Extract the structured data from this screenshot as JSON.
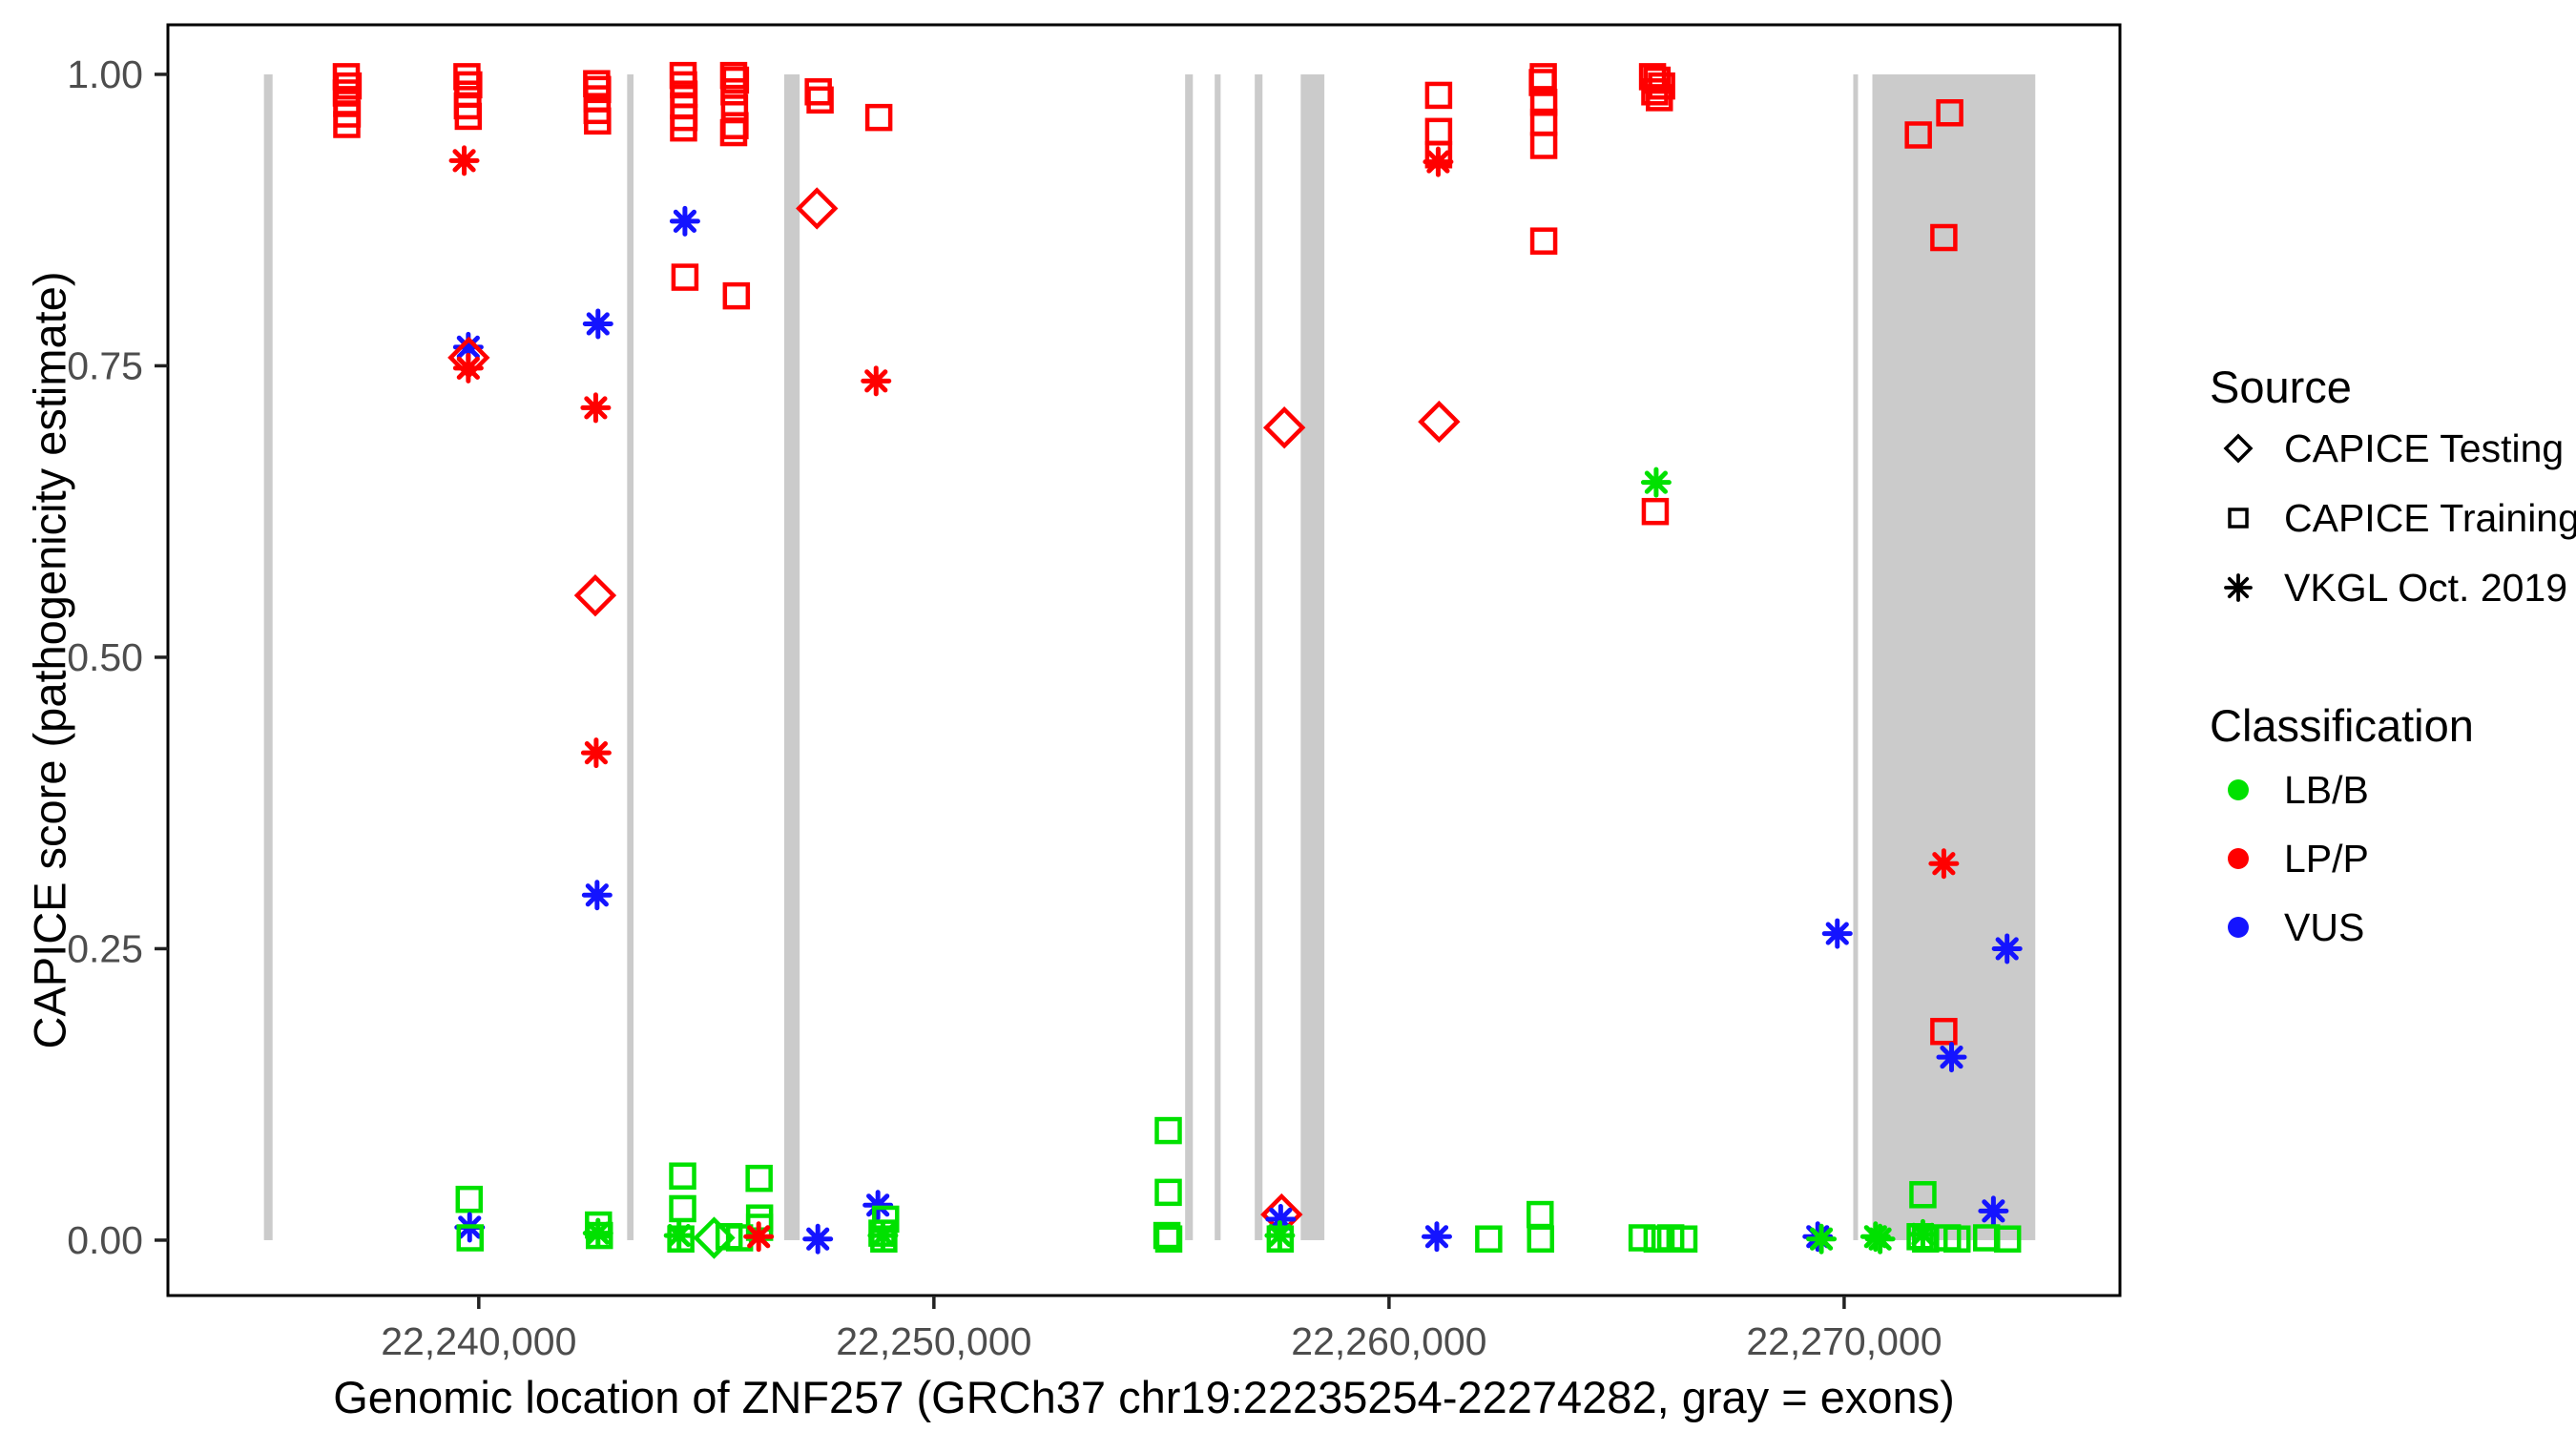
{
  "axes": {
    "x_title": "Genomic location of ZNF257 (GRCh37 chr19:22235254-22274282, gray = exons)",
    "y_title": "CAPICE score (pathogenicity estimate)"
  },
  "legend": {
    "source_title": "Source",
    "source_items": [
      {
        "label": "CAPICE Testing",
        "shape": "diamond"
      },
      {
        "label": "CAPICE Training",
        "shape": "square"
      },
      {
        "label": "VKGL Oct. 2019",
        "shape": "asterisk"
      }
    ],
    "classification_title": "Classification",
    "classification_items": [
      {
        "label": "LB/B",
        "colorKey": "LBB"
      },
      {
        "label": "LP/P",
        "colorKey": "LPP"
      },
      {
        "label": "VUS",
        "colorKey": "VUS"
      }
    ]
  },
  "chart_data": {
    "type": "scatter",
    "title": "",
    "xlabel": "Genomic location of ZNF257 (GRCh37 chr19:22235254-22274282, gray = exons)",
    "ylabel": "CAPICE score (pathogenicity estimate)",
    "x_range": [
      22233170,
      22276060
    ],
    "y_range": [
      -0.0475,
      1.0425
    ],
    "x_ticks": [
      {
        "value": 22240000,
        "label": "22,240,000"
      },
      {
        "value": 22250000,
        "label": "22,250,000"
      },
      {
        "value": 22260000,
        "label": "22,260,000"
      },
      {
        "value": 22270000,
        "label": "22,270,000"
      }
    ],
    "y_ticks": [
      {
        "value": 0.0,
        "label": "0.00"
      },
      {
        "value": 0.25,
        "label": "0.25"
      },
      {
        "value": 0.5,
        "label": "0.50"
      },
      {
        "value": 0.75,
        "label": "0.75"
      },
      {
        "value": 1.0,
        "label": "1.00"
      }
    ],
    "colors": {
      "LBB": "#00E100",
      "LPP": "#FF0000",
      "VUS": "#1414FF",
      "exon": "#CBCBCB",
      "tick_text": "#4D4D4D",
      "panel_border": "#000000"
    },
    "shape_meaning": {
      "diamond": "CAPICE Testing",
      "square": "CAPICE Training",
      "asterisk": "VKGL Oct. 2019"
    },
    "class_meaning": {
      "LBB": "LB/B",
      "LPP": "LP/P",
      "VUS": "VUS"
    },
    "exons_gray_regions": [
      [
        22235280,
        22235470
      ],
      [
        22243260,
        22243400
      ],
      [
        22246710,
        22247050
      ],
      [
        22255520,
        22255690
      ],
      [
        22256170,
        22256300
      ],
      [
        22257050,
        22257220
      ],
      [
        22258060,
        22258580
      ],
      [
        22270200,
        22270300
      ],
      [
        22270620,
        22274200
      ]
    ],
    "point_format": [
      "genomic_position",
      "capice_score",
      "shape",
      "classification"
    ],
    "points": [
      [
        22237090,
        0.998,
        "square",
        "LPP"
      ],
      [
        22237130,
        0.99,
        "square",
        "LPP"
      ],
      [
        22237090,
        0.984,
        "square",
        "LPP"
      ],
      [
        22237100,
        0.975,
        "square",
        "LPP"
      ],
      [
        22237110,
        0.966,
        "square",
        "LPP"
      ],
      [
        22237100,
        0.957,
        "square",
        "LPP"
      ],
      [
        22239740,
        0.998,
        "square",
        "LPP"
      ],
      [
        22239780,
        0.991,
        "square",
        "LPP"
      ],
      [
        22239760,
        0.983,
        "square",
        "LPP"
      ],
      [
        22239750,
        0.973,
        "square",
        "LPP"
      ],
      [
        22239770,
        0.964,
        "square",
        "LPP"
      ],
      [
        22239680,
        0.926,
        "asterisk",
        "LPP"
      ],
      [
        22239770,
        0.766,
        "asterisk",
        "VUS"
      ],
      [
        22239780,
        0.757,
        "diamond",
        "LPP"
      ],
      [
        22239770,
        0.748,
        "asterisk",
        "LPP"
      ],
      [
        22239790,
        0.035,
        "square",
        "LBB"
      ],
      [
        22239800,
        0.011,
        "asterisk",
        "VUS"
      ],
      [
        22239810,
        0.002,
        "square",
        "LBB"
      ],
      [
        22242590,
        0.992,
        "square",
        "LPP"
      ],
      [
        22242610,
        0.987,
        "square",
        "LPP"
      ],
      [
        22242600,
        0.979,
        "square",
        "LPP"
      ],
      [
        22242600,
        0.969,
        "square",
        "LPP"
      ],
      [
        22242610,
        0.96,
        "square",
        "LPP"
      ],
      [
        22242620,
        0.786,
        "asterisk",
        "VUS"
      ],
      [
        22242570,
        0.714,
        "asterisk",
        "LPP"
      ],
      [
        22242560,
        0.553,
        "diamond",
        "LPP"
      ],
      [
        22242580,
        0.418,
        "asterisk",
        "LPP"
      ],
      [
        22242600,
        0.296,
        "asterisk",
        "VUS"
      ],
      [
        22242630,
        0.013,
        "square",
        "LBB"
      ],
      [
        22242650,
        0.004,
        "square",
        "LBB"
      ],
      [
        22242620,
        0.006,
        "asterisk",
        "LBB"
      ],
      [
        22244490,
        0.999,
        "square",
        "LPP"
      ],
      [
        22244500,
        0.991,
        "square",
        "LPP"
      ],
      [
        22244510,
        0.983,
        "square",
        "LPP"
      ],
      [
        22244500,
        0.973,
        "square",
        "LPP"
      ],
      [
        22244510,
        0.963,
        "square",
        "LPP"
      ],
      [
        22244500,
        0.954,
        "square",
        "LPP"
      ],
      [
        22244530,
        0.874,
        "asterisk",
        "VUS"
      ],
      [
        22244530,
        0.826,
        "square",
        "LPP"
      ],
      [
        22244480,
        0.055,
        "square",
        "LBB"
      ],
      [
        22244480,
        0.027,
        "square",
        "LBB"
      ],
      [
        22244400,
        0.004,
        "asterisk",
        "LBB"
      ],
      [
        22244440,
        0.001,
        "square",
        "LBB"
      ],
      [
        22245170,
        0.002,
        "diamond",
        "LBB"
      ],
      [
        22245500,
        0.003,
        "square",
        "LBB"
      ],
      [
        22245730,
        0.002,
        "square",
        "LBB"
      ],
      [
        22245600,
        0.999,
        "square",
        "LPP"
      ],
      [
        22245640,
        0.995,
        "square",
        "LPP"
      ],
      [
        22245610,
        0.985,
        "square",
        "LPP"
      ],
      [
        22245620,
        0.971,
        "square",
        "LPP"
      ],
      [
        22245630,
        0.956,
        "square",
        "LPP"
      ],
      [
        22245600,
        0.95,
        "square",
        "LPP"
      ],
      [
        22245660,
        0.81,
        "square",
        "LPP"
      ],
      [
        22246160,
        0.053,
        "square",
        "LBB"
      ],
      [
        22246170,
        0.019,
        "square",
        "LBB"
      ],
      [
        22246170,
        0.011,
        "square",
        "LBB"
      ],
      [
        22246150,
        0.003,
        "asterisk",
        "LPP"
      ],
      [
        22247460,
        0.985,
        "square",
        "LPP"
      ],
      [
        22247500,
        0.978,
        "square",
        "LPP"
      ],
      [
        22247430,
        0.885,
        "diamond",
        "LPP"
      ],
      [
        22247450,
        0.001,
        "asterisk",
        "VUS"
      ],
      [
        22248790,
        0.963,
        "square",
        "LPP"
      ],
      [
        22248730,
        0.737,
        "asterisk",
        "LPP"
      ],
      [
        22248770,
        0.03,
        "asterisk",
        "VUS"
      ],
      [
        22248940,
        0.018,
        "square",
        "LBB"
      ],
      [
        22248860,
        0.006,
        "square",
        "LBB"
      ],
      [
        22248880,
        0.004,
        "asterisk",
        "LBB"
      ],
      [
        22248900,
        0.001,
        "square",
        "LBB"
      ],
      [
        22255150,
        0.094,
        "square",
        "LBB"
      ],
      [
        22255150,
        0.041,
        "square",
        "LBB"
      ],
      [
        22255120,
        0.004,
        "square",
        "LBB"
      ],
      [
        22255160,
        0.001,
        "square",
        "LBB"
      ],
      [
        22257640,
        0.022,
        "diamond",
        "LPP"
      ],
      [
        22257620,
        0.018,
        "asterisk",
        "VUS"
      ],
      [
        22257600,
        0.004,
        "asterisk",
        "LBB"
      ],
      [
        22257610,
        0.001,
        "square",
        "LBB"
      ],
      [
        22257700,
        0.697,
        "diamond",
        "LPP"
      ],
      [
        22261100,
        0.702,
        "diamond",
        "LPP"
      ],
      [
        22261090,
        0.982,
        "square",
        "LPP"
      ],
      [
        22261090,
        0.951,
        "square",
        "LPP"
      ],
      [
        22261090,
        0.931,
        "square",
        "LPP"
      ],
      [
        22261080,
        0.925,
        "asterisk",
        "LPP"
      ],
      [
        22261050,
        0.003,
        "asterisk",
        "VUS"
      ],
      [
        22262190,
        0.001,
        "square",
        "LBB"
      ],
      [
        22263320,
        0.022,
        "square",
        "LBB"
      ],
      [
        22263330,
        0.001,
        "square",
        "LBB"
      ],
      [
        22263390,
        0.998,
        "square",
        "LPP"
      ],
      [
        22263370,
        0.993,
        "square",
        "LPP"
      ],
      [
        22263400,
        0.976,
        "square",
        "LPP"
      ],
      [
        22263400,
        0.959,
        "square",
        "LPP"
      ],
      [
        22263400,
        0.939,
        "square",
        "LPP"
      ],
      [
        22263400,
        0.857,
        "square",
        "LPP"
      ],
      [
        22265560,
        0.002,
        "square",
        "LBB"
      ],
      [
        22265890,
        0.001,
        "square",
        "LBB"
      ],
      [
        22266190,
        0.002,
        "square",
        "LBB"
      ],
      [
        22266480,
        0.001,
        "square",
        "LBB"
      ],
      [
        22265790,
        0.998,
        "square",
        "LPP"
      ],
      [
        22265890,
        0.995,
        "square",
        "LPP"
      ],
      [
        22265990,
        0.99,
        "square",
        "LPP"
      ],
      [
        22265840,
        0.985,
        "square",
        "LPP"
      ],
      [
        22265940,
        0.98,
        "square",
        "LPP"
      ],
      [
        22265870,
        0.65,
        "asterisk",
        "LBB"
      ],
      [
        22265850,
        0.625,
        "square",
        "LPP"
      ],
      [
        22269420,
        0.003,
        "asterisk",
        "VUS"
      ],
      [
        22269500,
        0.001,
        "asterisk",
        "LBB"
      ],
      [
        22269850,
        0.263,
        "asterisk",
        "VUS"
      ],
      [
        22270690,
        0.003,
        "asterisk",
        "LBB"
      ],
      [
        22270790,
        0.001,
        "asterisk",
        "LBB"
      ],
      [
        22271630,
        0.948,
        "square",
        "LPP"
      ],
      [
        22272320,
        0.967,
        "square",
        "LPP"
      ],
      [
        22272190,
        0.86,
        "square",
        "LPP"
      ],
      [
        22272190,
        0.323,
        "asterisk",
        "LPP"
      ],
      [
        22272190,
        0.179,
        "square",
        "LPP"
      ],
      [
        22272360,
        0.157,
        "asterisk",
        "VUS"
      ],
      [
        22273580,
        0.25,
        "asterisk",
        "VUS"
      ],
      [
        22273280,
        0.025,
        "asterisk",
        "VUS"
      ],
      [
        22271730,
        0.039,
        "square",
        "LBB"
      ],
      [
        22271670,
        0.003,
        "square",
        "LBB"
      ],
      [
        22271730,
        0.005,
        "asterisk",
        "LBB"
      ],
      [
        22271790,
        0.001,
        "square",
        "LBB"
      ],
      [
        22272270,
        0.002,
        "square",
        "LBB"
      ],
      [
        22272480,
        0.001,
        "square",
        "LBB"
      ],
      [
        22273130,
        0.002,
        "square",
        "LBB"
      ],
      [
        22273590,
        0.001,
        "square",
        "LBB"
      ]
    ],
    "grid": false,
    "legend_position": "right"
  }
}
